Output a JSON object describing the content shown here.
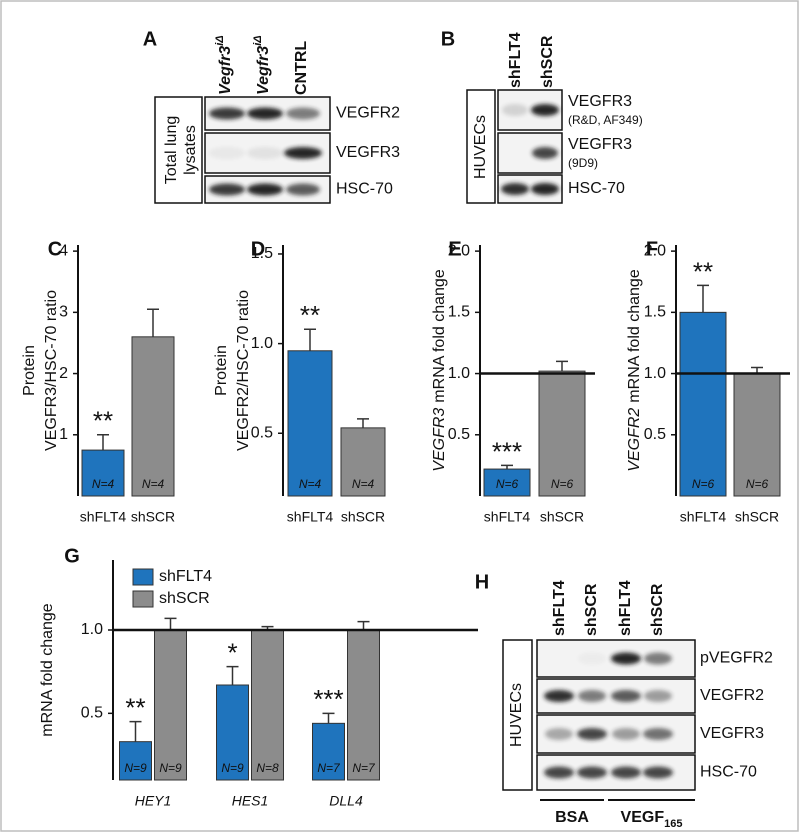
{
  "panels": {
    "A": {
      "label": "A",
      "columns": [
        {
          "gene": "Vegfr3",
          "sup": "iΔ"
        },
        {
          "gene": "Vegfr3",
          "sup": "iΔ"
        },
        "CNTRL"
      ],
      "sample": [
        "Total lung",
        "lysates"
      ],
      "rows": [
        "VEGFR2",
        "VEGFR3",
        "HSC-70"
      ]
    },
    "B": {
      "label": "B",
      "columns": [
        "shFLT4",
        "shSCR"
      ],
      "sample": "HUVECs",
      "rows": [
        {
          "name": "VEGFR3",
          "note": "(R&D, AF349)"
        },
        {
          "name": "VEGFR3",
          "note": "(9D9)"
        },
        "HSC-70"
      ]
    },
    "H": {
      "label": "H",
      "columns": [
        "shFLT4",
        "shSCR",
        "shFLT4",
        "shSCR"
      ],
      "sample": "HUVECs",
      "rows": [
        "pVEGFR2",
        "VEGFR2",
        "VEGFR3",
        "HSC-70"
      ],
      "groups": [
        {
          "name": "BSA"
        },
        {
          "name": "VEGF",
          "sub": "165"
        }
      ]
    }
  },
  "chart_data": [
    {
      "type": "bar",
      "label": "C",
      "ylabel": [
        "Protein",
        "VEGFR3/HSC-70 ratio"
      ],
      "categories": [
        "shFLT4",
        "shSCR"
      ],
      "values": [
        0.75,
        2.6
      ],
      "errors": [
        0.25,
        0.45
      ],
      "colors": [
        "#1f74bd",
        "#8c8c8c"
      ],
      "n_labels": [
        "N=4",
        "N=4"
      ],
      "sig_labels": [
        "**",
        null
      ],
      "ylim": [
        0,
        4.1
      ],
      "yticks": [
        1,
        2,
        3,
        4
      ]
    },
    {
      "type": "bar",
      "label": "D",
      "ylabel": [
        "Protein",
        "VEGFR2/HSC-70 ratio"
      ],
      "categories": [
        "shFLT4",
        "shSCR"
      ],
      "values": [
        0.96,
        0.53
      ],
      "errors": [
        0.12,
        0.05
      ],
      "colors": [
        "#1f74bd",
        "#8c8c8c"
      ],
      "n_labels": [
        "N=4",
        "N=4"
      ],
      "sig_labels": [
        "**",
        null
      ],
      "ylim": [
        0.15,
        1.55
      ],
      "yticks": [
        0.5,
        {
          "value": 1,
          "label": "1.0"
        },
        1.5
      ]
    },
    {
      "type": "bar",
      "label": "E",
      "ylabel": {
        "gene": "VEGFR3",
        "text": "mRNA fold change"
      },
      "categories": [
        "shFLT4",
        "shSCR"
      ],
      "values": [
        0.22,
        1.02
      ],
      "errors": [
        0.03,
        0.08
      ],
      "colors": [
        "#1f74bd",
        "#8c8c8c"
      ],
      "n_labels": [
        "N=6",
        "N=6"
      ],
      "sig_labels": [
        "***",
        null
      ],
      "reference_line": 1,
      "ylim": [
        0,
        2.05
      ],
      "yticks": [
        0.5,
        {
          "value": 1,
          "label": "1.0"
        },
        1.5,
        {
          "value": 2,
          "label": "2.0"
        }
      ]
    },
    {
      "type": "bar",
      "label": "F",
      "ylabel": {
        "gene": "VEGFR2",
        "text": "mRNA fold change"
      },
      "categories": [
        "shFLT4",
        "shSCR"
      ],
      "values": [
        1.5,
        1.0
      ],
      "errors": [
        0.22,
        0.05
      ],
      "colors": [
        "#1f74bd",
        "#8c8c8c"
      ],
      "n_labels": [
        "N=6",
        "N=6"
      ],
      "sig_labels": [
        "**",
        null
      ],
      "reference_line": 1,
      "ylim": [
        0,
        2.05
      ],
      "yticks": [
        0.5,
        {
          "value": 1,
          "label": "1.0"
        },
        1.5,
        {
          "value": 2,
          "label": "2.0"
        }
      ]
    },
    {
      "type": "grouped_bar",
      "label": "G",
      "ylabel": "mRNA fold change",
      "categories": [
        "HEY1",
        "HES1",
        "DLL4"
      ],
      "series": [
        {
          "name": "shFLT4",
          "color": "#1f74bd",
          "values": [
            0.33,
            0.67,
            0.44
          ],
          "errors": [
            0.12,
            0.11,
            0.06
          ],
          "n_labels": [
            "N=9",
            "N=9",
            "N=7"
          ],
          "sig_labels": [
            "**",
            "*",
            "***"
          ]
        },
        {
          "name": "shSCR",
          "color": "#8c8c8c",
          "values": [
            1.0,
            1.0,
            1.0
          ],
          "errors": [
            0.07,
            0.02,
            0.05
          ],
          "n_labels": [
            "N=9",
            "N=8",
            "N=7"
          ]
        }
      ],
      "reference_line": 1,
      "ylim": [
        0.1,
        1.42
      ],
      "yticks": [
        0.5,
        {
          "value": 1,
          "label": "1.0"
        }
      ]
    }
  ]
}
